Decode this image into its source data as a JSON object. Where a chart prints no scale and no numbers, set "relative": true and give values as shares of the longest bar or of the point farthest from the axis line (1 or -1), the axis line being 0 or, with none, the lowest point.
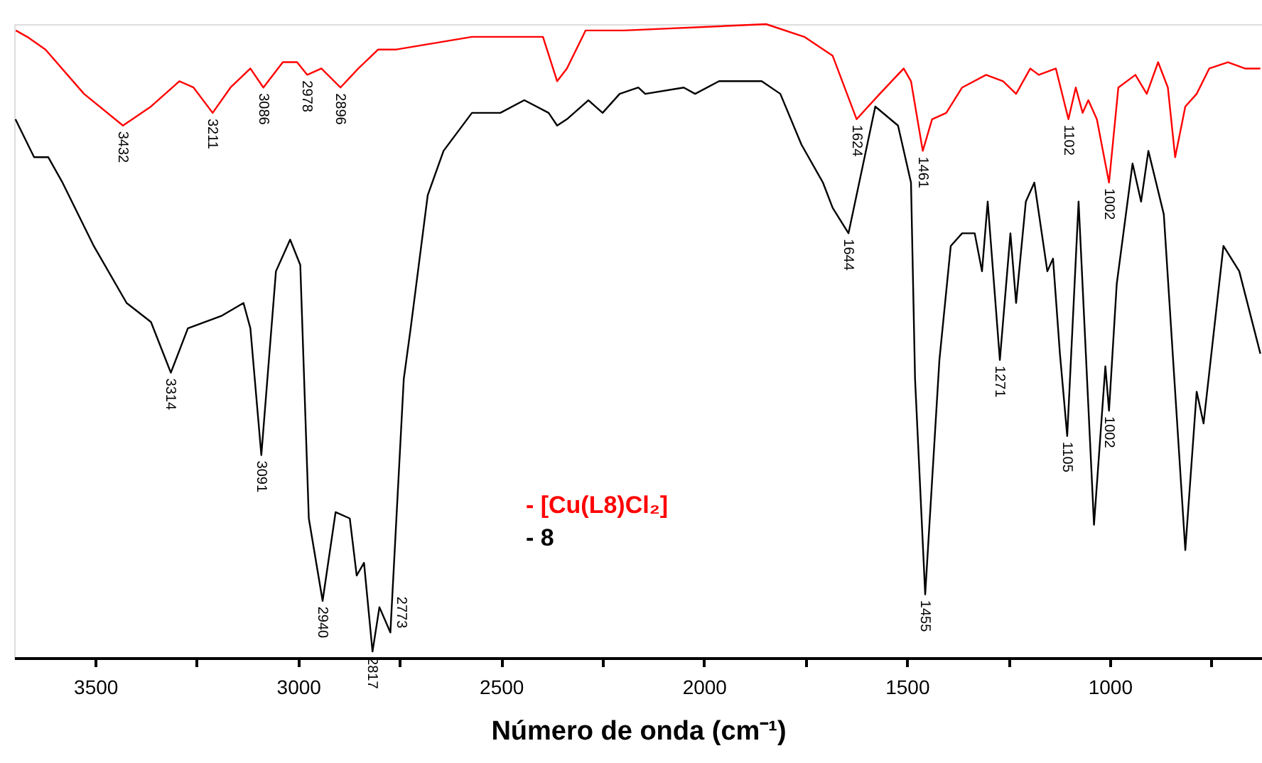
{
  "chart_data": {
    "type": "line",
    "relative": true,
    "xlabel": "Número de onda (cm⁻¹)",
    "xlim": [
      3700,
      625
    ],
    "xticks": [
      3500,
      {
        "value": 3250,
        "label": null
      },
      3000,
      {
        "value": 2750,
        "label": null
      },
      2500,
      {
        "value": 2250,
        "label": null
      },
      2000,
      {
        "value": 1750,
        "label": null
      },
      1500,
      {
        "value": 1250,
        "label": null
      },
      1000,
      {
        "value": 750,
        "label": null
      }
    ],
    "legend": "bottom",
    "grid": false,
    "marker": "none",
    "line_style": "solid",
    "series": [
      {
        "name": "- [Cu(L8)Cl₂]",
        "color": "#ff0000",
        "x": [
          3696,
          3668,
          3623,
          3528,
          3432,
          3363,
          3293,
          3258,
          3211,
          3167,
          3118,
          3086,
          3038,
          3003,
          2978,
          2943,
          2896,
          2852,
          2803,
          2758,
          2572,
          2397,
          2362,
          2338,
          2292,
          2197,
          1847,
          1753,
          1683,
          1624,
          1567,
          1508,
          1490,
          1461,
          1438,
          1403,
          1364,
          1305,
          1263,
          1231,
          1196,
          1175,
          1133,
          1102,
          1084,
          1067,
          1053,
          1032,
          1002,
          979,
          937,
          909,
          881,
          857,
          839,
          814,
          786,
          755,
          709,
          667,
          629
        ],
        "values": [
          0.99,
          0.98,
          0.96,
          0.89,
          0.84,
          0.87,
          0.91,
          0.9,
          0.86,
          0.9,
          0.93,
          0.9,
          0.94,
          0.94,
          0.92,
          0.93,
          0.9,
          0.93,
          0.96,
          0.96,
          0.98,
          0.98,
          0.91,
          0.93,
          0.99,
          0.99,
          1.0,
          0.98,
          0.95,
          0.85,
          0.89,
          0.93,
          0.91,
          0.8,
          0.85,
          0.86,
          0.9,
          0.92,
          0.91,
          0.89,
          0.93,
          0.92,
          0.93,
          0.85,
          0.9,
          0.86,
          0.88,
          0.85,
          0.75,
          0.9,
          0.92,
          0.89,
          0.94,
          0.9,
          0.79,
          0.87,
          0.89,
          0.93,
          0.94,
          0.93,
          0.93
        ]
      },
      {
        "name": "- 8",
        "color": "#000000",
        "x": [
          3697,
          3651,
          3616,
          3581,
          3504,
          3423,
          3363,
          3314,
          3272,
          3188,
          3135,
          3118,
          3091,
          3055,
          3020,
          2995,
          2974,
          2940,
          2908,
          2873,
          2856,
          2838,
          2817,
          2800,
          2773,
          2740,
          2723,
          2681,
          2642,
          2572,
          2502,
          2443,
          2383,
          2362,
          2338,
          2285,
          2250,
          2208,
          2162,
          2145,
          2050,
          2022,
          1963,
          1858,
          1812,
          1760,
          1707,
          1683,
          1644,
          1578,
          1522,
          1490,
          1480,
          1455,
          1420,
          1392,
          1364,
          1333,
          1315,
          1301,
          1271,
          1245,
          1231,
          1207,
          1186,
          1154,
          1140,
          1123,
          1105,
          1077,
          1039,
          1011,
          1002,
          983,
          944,
          923,
          905,
          867,
          814,
          786,
          769,
          720,
          681,
          629
        ],
        "values": [
          0.85,
          0.79,
          0.79,
          0.75,
          0.65,
          0.56,
          0.53,
          0.45,
          0.52,
          0.54,
          0.56,
          0.52,
          0.32,
          0.61,
          0.66,
          0.62,
          0.22,
          0.09,
          0.23,
          0.22,
          0.13,
          0.15,
          0.01,
          0.08,
          0.04,
          0.44,
          0.52,
          0.73,
          0.8,
          0.86,
          0.86,
          0.88,
          0.86,
          0.84,
          0.85,
          0.88,
          0.86,
          0.89,
          0.9,
          0.89,
          0.9,
          0.89,
          0.91,
          0.91,
          0.89,
          0.81,
          0.75,
          0.71,
          0.67,
          0.87,
          0.84,
          0.75,
          0.44,
          0.1,
          0.47,
          0.65,
          0.67,
          0.67,
          0.61,
          0.72,
          0.47,
          0.67,
          0.56,
          0.72,
          0.75,
          0.61,
          0.63,
          0.48,
          0.35,
          0.72,
          0.21,
          0.46,
          0.39,
          0.59,
          0.78,
          0.72,
          0.8,
          0.7,
          0.17,
          0.42,
          0.37,
          0.65,
          0.61,
          0.48
        ]
      }
    ],
    "annotations": [
      {
        "text": "3432",
        "x": 3432,
        "y": 0.84
      },
      {
        "text": "3211",
        "x": 3211,
        "y": 0.86
      },
      {
        "text": "3086",
        "x": 3086,
        "y": 0.9
      },
      {
        "text": "2978",
        "x": 2978,
        "y": 0.92
      },
      {
        "text": "2896",
        "x": 2896,
        "y": 0.9
      },
      {
        "text": "1624",
        "x": 1624,
        "y": 0.85
      },
      {
        "text": "1461",
        "x": 1461,
        "y": 0.8
      },
      {
        "text": "1102",
        "x": 1102,
        "y": 0.85
      },
      {
        "text": "1002",
        "x": 1002,
        "y": 0.75
      },
      {
        "text": "3314",
        "x": 3314,
        "y": 0.45
      },
      {
        "text": "3091",
        "x": 3091,
        "y": 0.32
      },
      {
        "text": "2940",
        "x": 2940,
        "y": 0.09
      },
      {
        "text": "2817",
        "x": 2817,
        "y": 0.01
      },
      {
        "text": "2773",
        "x": 2773,
        "y": 0.04
      },
      {
        "text": "1644",
        "x": 1644,
        "y": 0.67
      },
      {
        "text": "1455",
        "x": 1455,
        "y": 0.1
      },
      {
        "text": "1271",
        "x": 1271,
        "y": 0.47
      },
      {
        "text": "1105",
        "x": 1105,
        "y": 0.35
      },
      {
        "text": "1002",
        "x": 1002,
        "y": 0.39
      }
    ]
  }
}
